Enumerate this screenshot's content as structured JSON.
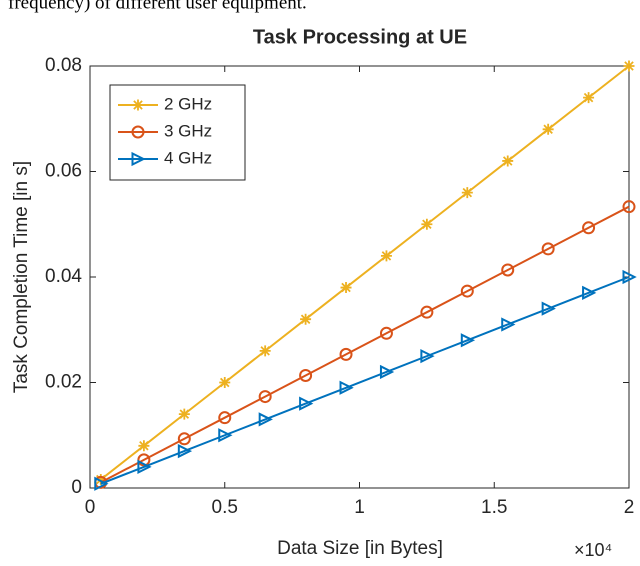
{
  "caption": "frequency) of different user equipment.",
  "chart_data": {
    "type": "line",
    "title": "Task Processing at UE",
    "x_label": "Data Size [in Bytes]",
    "y_label": "Task Completion Time [in s]",
    "x_exponent_label": "×10⁴",
    "x": [
      400,
      2000,
      3500,
      5000,
      6500,
      8000,
      9500,
      11000,
      12500,
      14000,
      15500,
      17000,
      18500,
      20000
    ],
    "series": [
      {
        "name": "2 GHz",
        "color": "#EDB120",
        "marker": "asterisk",
        "values": [
          0.0016,
          0.008,
          0.014,
          0.02,
          0.026,
          0.032,
          0.038,
          0.044,
          0.05,
          0.056,
          0.062,
          0.068,
          0.074,
          0.08
        ]
      },
      {
        "name": "3 GHz",
        "color": "#D95319",
        "marker": "circle",
        "values": [
          0.00107,
          0.00533,
          0.00933,
          0.01333,
          0.01733,
          0.02133,
          0.02533,
          0.02933,
          0.03333,
          0.03733,
          0.04133,
          0.04533,
          0.04933,
          0.05333
        ]
      },
      {
        "name": "4 GHz",
        "color": "#0072BD",
        "marker": "triangle-right",
        "values": [
          0.0008,
          0.004,
          0.007,
          0.01,
          0.013,
          0.016,
          0.019,
          0.022,
          0.025,
          0.028,
          0.031,
          0.034,
          0.037,
          0.04
        ]
      }
    ],
    "xlim": [
      0,
      20000
    ],
    "xticks": [
      0,
      {
        "value": 5000,
        "label": "0.5"
      },
      {
        "value": 10000,
        "label": "1"
      },
      {
        "value": 15000,
        "label": "1.5"
      },
      {
        "value": 20000,
        "label": "2"
      }
    ],
    "ylim": [
      0,
      0.08
    ],
    "yticks": [
      0,
      0.02,
      0.04,
      0.06,
      0.08
    ],
    "grid": false,
    "legend": "upper-left"
  }
}
